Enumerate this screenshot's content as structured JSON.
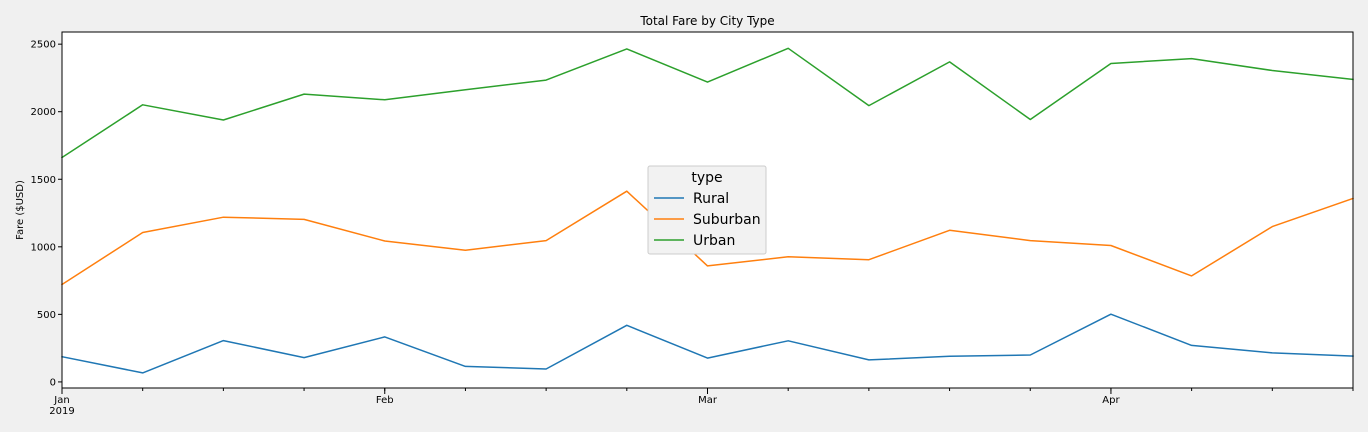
{
  "chart_data": {
    "type": "line",
    "title": "Total Fare by City Type",
    "xlabel": "",
    "ylabel": "Fare ($USD)",
    "ylim": [
      -45,
      2590
    ],
    "xlim": [
      "2019-01-06",
      "2019-04-28"
    ],
    "yticks": [
      0,
      500,
      1000,
      1500,
      2000,
      2500
    ],
    "xticks_major": [
      {
        "date": "2019-01-06",
        "label": "Jan",
        "sublabel": "2019"
      },
      {
        "date": "2019-02-03",
        "label": "Feb",
        "sublabel": ""
      },
      {
        "date": "2019-03-03",
        "label": "Mar",
        "sublabel": ""
      },
      {
        "date": "2019-04-07",
        "label": "Apr",
        "sublabel": ""
      }
    ],
    "grid": false,
    "legend": {
      "title": "type",
      "placement": "center"
    },
    "x": [
      "2019-01-06",
      "2019-01-13",
      "2019-01-20",
      "2019-01-27",
      "2019-02-03",
      "2019-02-10",
      "2019-02-17",
      "2019-02-24",
      "2019-03-03",
      "2019-03-10",
      "2019-03-17",
      "2019-03-24",
      "2019-03-31",
      "2019-04-07",
      "2019-04-14",
      "2019-04-21",
      "2019-04-28"
    ],
    "series": [
      {
        "name": "Rural",
        "color": "#1f77b4",
        "values": [
          187,
          67,
          306,
          180,
          333,
          115,
          96,
          419,
          176,
          304,
          163,
          190,
          199,
          501,
          270,
          215,
          191
        ]
      },
      {
        "name": "Suburban",
        "color": "#ff7f0e",
        "values": [
          721,
          1106,
          1219,
          1203,
          1043,
          975,
          1046,
          1412,
          859,
          926,
          905,
          1122,
          1046,
          1010,
          785,
          1150,
          1358
        ]
      },
      {
        "name": "Urban",
        "color": "#2ca02c",
        "values": [
          1661,
          2051,
          1939,
          2130,
          2088,
          2163,
          2234,
          2465,
          2219,
          2469,
          2045,
          2369,
          1942,
          2357,
          2393,
          2305,
          2239
        ]
      }
    ]
  }
}
